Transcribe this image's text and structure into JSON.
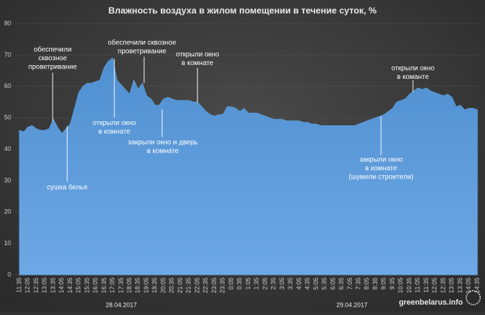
{
  "chart_data": {
    "type": "area",
    "title": "Влажность воздуха в жилом помещении в течение суток, %",
    "categories": [
      "11:35",
      null,
      "12:05",
      null,
      "12:35",
      null,
      "13:05",
      null,
      "13:35",
      null,
      "14:05",
      null,
      "14:35",
      null,
      "15:05",
      null,
      "15:35",
      null,
      "16:05",
      null,
      "16:35",
      null,
      "17:05",
      null,
      "17:35",
      null,
      "18:05",
      null,
      "18:35",
      null,
      "19:05",
      null,
      "19:35",
      null,
      "20:05",
      null,
      "20:35",
      null,
      "21:05",
      null,
      "21:35",
      null,
      "22:05",
      null,
      "22:35",
      null,
      "23:05",
      null,
      "23:35",
      null,
      "0:05",
      null,
      "0:35",
      null,
      "1:05",
      null,
      "1:35",
      null,
      "2:05",
      null,
      "2:35",
      null,
      "3:05",
      null,
      "3:35",
      null,
      "4:05",
      null,
      "4:35",
      null,
      "5:05",
      null,
      "5:35",
      null,
      "6:05",
      null,
      "6:35",
      null,
      "7:05",
      null,
      "7:35",
      null,
      "8:05",
      null,
      "8:35",
      null,
      "9:05",
      null,
      "9:35",
      null,
      "10:05",
      null,
      "10:35",
      null,
      "11:05",
      null,
      "11:35",
      null,
      "12:05",
      null,
      "12:35",
      null,
      "13:05",
      null,
      "13:35",
      null,
      "14:05",
      null,
      "14:35"
    ],
    "values": [
      46,
      45.5,
      47,
      47.5,
      46.5,
      46,
      46,
      46.5,
      49.5,
      47,
      45,
      46.5,
      48,
      53,
      58,
      60,
      61,
      61,
      61.5,
      62,
      66,
      68,
      69,
      62,
      60.5,
      59,
      57.5,
      62,
      59,
      61,
      57,
      56,
      54,
      54,
      56,
      56.5,
      56,
      55.5,
      55.5,
      55.5,
      55.5,
      55,
      55,
      53.5,
      52,
      51,
      50.5,
      51,
      51,
      53.5,
      53.5,
      53,
      52,
      53,
      51.5,
      51.5,
      51.5,
      51,
      50.5,
      50,
      49.5,
      49.5,
      49.5,
      49,
      49,
      49,
      49,
      48.5,
      48.5,
      48,
      48,
      47.5,
      47.5,
      47.5,
      47.5,
      47.5,
      47.5,
      47.5,
      47.5,
      47.5,
      48,
      48.5,
      49,
      49.5,
      50,
      50.5,
      51,
      52,
      53,
      55,
      55.5,
      56,
      57.5,
      58.5,
      59.5,
      59,
      59.5,
      58.5,
      58,
      57.5,
      57,
      57.5,
      56.5,
      53.5,
      54,
      52.5,
      53,
      53,
      52.5
    ],
    "color": "#5b9bd5",
    "ylim": [
      0,
      80
    ],
    "yticks": [
      0,
      10,
      20,
      30,
      40,
      50,
      60,
      70,
      80
    ],
    "grid": true,
    "dates": [
      "28.04.2017",
      "29.04.2017"
    ],
    "annotations": [
      [
        "обеспечили",
        "сквозное",
        "проветривание"
      ],
      [
        "сушка белья"
      ],
      [
        "обеспечили сквозное",
        "проветривание"
      ],
      [
        "открыли окно",
        "в комнате"
      ],
      [
        "открыли окно",
        "в комнате"
      ],
      [
        "закрыли окно и дверь",
        "в комнате"
      ],
      [
        "открыли окно",
        "в команте"
      ],
      [
        "закрыли окно",
        "в комнате",
        "(шумели строители)"
      ]
    ],
    "source": "greenbelarus.info"
  }
}
